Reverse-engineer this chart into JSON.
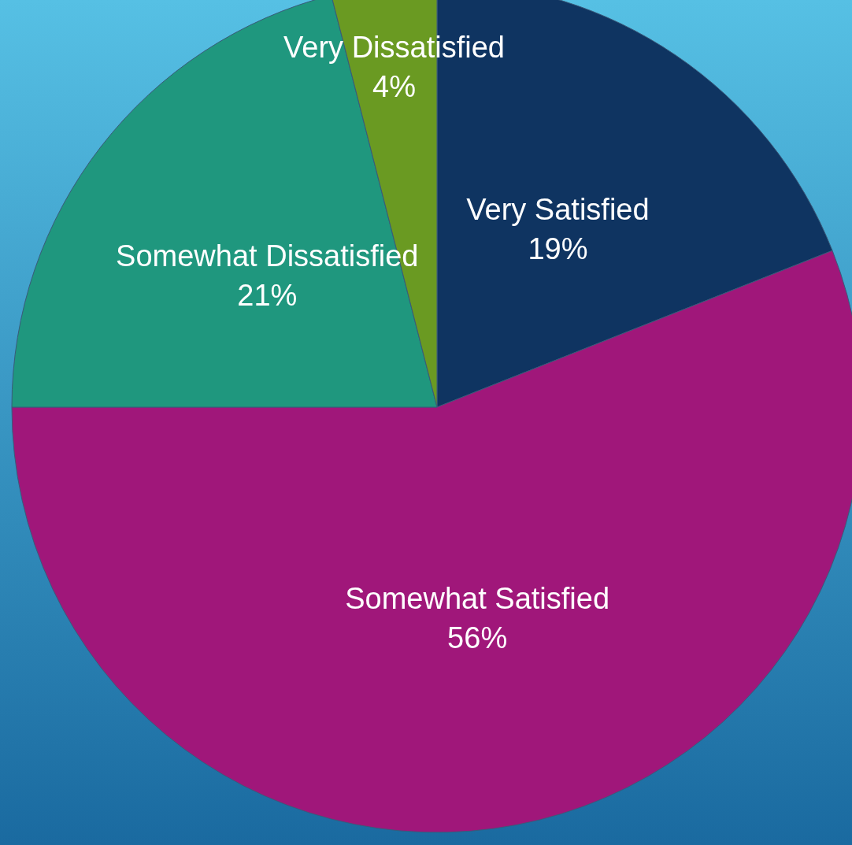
{
  "chart_data": {
    "type": "pie",
    "categories": [
      "Very Satisfied",
      "Somewhat Satisfied",
      "Somewhat Dissatisfied",
      "Very Dissatisfied"
    ],
    "values": [
      19,
      56,
      21,
      4
    ],
    "colors": [
      "#0f3461",
      "#a0177a",
      "#1f977e",
      "#6a9a22"
    ],
    "value_labels": [
      "19%",
      "56%",
      "21%",
      "4%"
    ],
    "legend": false
  }
}
